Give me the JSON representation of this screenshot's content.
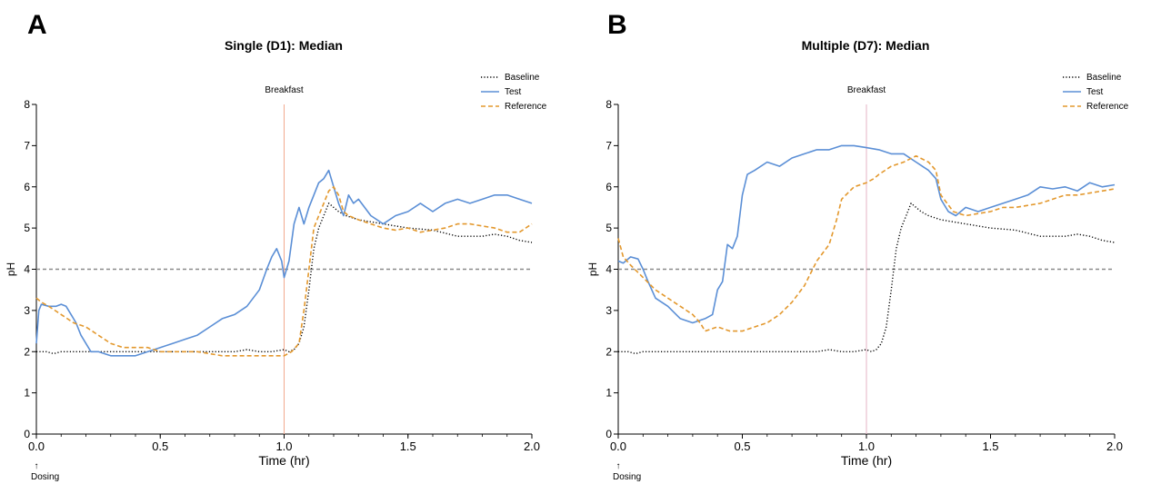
{
  "chart_data": [
    {
      "panel_label": "A",
      "type": "line",
      "title": "Single (D1): Median",
      "xlabel": "Time (hr)",
      "ylabel": "pH",
      "xlim": [
        0,
        2
      ],
      "ylim": [
        0,
        8
      ],
      "x_ticks": [
        "0.0",
        "0.5",
        "1.0",
        "1.5",
        "2.0"
      ],
      "y_ticks": [
        "0",
        "1",
        "2",
        "3",
        "4",
        "5",
        "6",
        "7",
        "8"
      ],
      "reference_line": {
        "y": 4
      },
      "event": {
        "x": 1.0,
        "label": "Breakfast"
      },
      "dosing_label": "Dosing",
      "dosing_arrow": "↑",
      "legend_position": "top-right",
      "series": [
        {
          "name": "Baseline",
          "color": "#000000",
          "style": "dotted",
          "x": [
            0,
            0.04,
            0.07,
            0.1,
            0.15,
            0.2,
            0.3,
            0.4,
            0.5,
            0.6,
            0.7,
            0.8,
            0.85,
            0.9,
            0.95,
            1.0,
            1.02,
            1.04,
            1.06,
            1.08,
            1.1,
            1.12,
            1.14,
            1.16,
            1.18,
            1.2,
            1.22,
            1.25,
            1.3,
            1.35,
            1.4,
            1.5,
            1.6,
            1.7,
            1.8,
            1.85,
            1.9,
            1.95,
            2.0
          ],
          "y": [
            2.0,
            2.0,
            1.95,
            2.0,
            2.0,
            2.0,
            2.0,
            2.0,
            2.0,
            2.0,
            2.0,
            2.0,
            2.05,
            2.0,
            2.0,
            2.05,
            2.0,
            2.05,
            2.2,
            2.6,
            3.5,
            4.5,
            5.0,
            5.3,
            5.6,
            5.5,
            5.4,
            5.3,
            5.2,
            5.15,
            5.1,
            5.0,
            4.95,
            4.8,
            4.8,
            4.85,
            4.8,
            4.7,
            4.65
          ]
        },
        {
          "name": "Test",
          "color": "#5b8fd6",
          "style": "solid",
          "x": [
            0,
            0.01,
            0.02,
            0.05,
            0.08,
            0.1,
            0.12,
            0.14,
            0.16,
            0.18,
            0.2,
            0.22,
            0.25,
            0.3,
            0.35,
            0.4,
            0.45,
            0.5,
            0.55,
            0.6,
            0.65,
            0.7,
            0.75,
            0.8,
            0.85,
            0.9,
            0.93,
            0.95,
            0.97,
            0.99,
            1.0,
            1.02,
            1.04,
            1.06,
            1.08,
            1.1,
            1.12,
            1.14,
            1.16,
            1.18,
            1.2,
            1.22,
            1.24,
            1.26,
            1.28,
            1.3,
            1.35,
            1.4,
            1.45,
            1.5,
            1.55,
            1.6,
            1.65,
            1.7,
            1.75,
            1.8,
            1.85,
            1.9,
            1.95,
            2.0
          ],
          "y": [
            2.2,
            3.0,
            3.15,
            3.1,
            3.1,
            3.15,
            3.1,
            2.9,
            2.7,
            2.4,
            2.2,
            2.0,
            2.0,
            1.9,
            1.9,
            1.9,
            2.0,
            2.1,
            2.2,
            2.3,
            2.4,
            2.6,
            2.8,
            2.9,
            3.1,
            3.5,
            4.0,
            4.3,
            4.5,
            4.2,
            3.8,
            4.2,
            5.1,
            5.5,
            5.1,
            5.5,
            5.8,
            6.1,
            6.2,
            6.4,
            6.0,
            5.6,
            5.3,
            5.8,
            5.6,
            5.7,
            5.3,
            5.1,
            5.3,
            5.4,
            5.6,
            5.4,
            5.6,
            5.7,
            5.6,
            5.7,
            5.8,
            5.8,
            5.7,
            5.6
          ]
        },
        {
          "name": "Reference",
          "color": "#e3982d",
          "style": "dashed",
          "x": [
            0,
            0.02,
            0.05,
            0.1,
            0.15,
            0.2,
            0.25,
            0.3,
            0.35,
            0.4,
            0.45,
            0.5,
            0.55,
            0.6,
            0.65,
            0.7,
            0.75,
            0.8,
            0.85,
            0.9,
            0.95,
            1.0,
            1.03,
            1.06,
            1.08,
            1.1,
            1.12,
            1.14,
            1.16,
            1.18,
            1.2,
            1.22,
            1.24,
            1.26,
            1.3,
            1.35,
            1.4,
            1.45,
            1.5,
            1.55,
            1.6,
            1.65,
            1.7,
            1.75,
            1.8,
            1.85,
            1.9,
            1.95,
            2.0
          ],
          "y": [
            3.3,
            3.2,
            3.1,
            2.9,
            2.7,
            2.6,
            2.4,
            2.2,
            2.1,
            2.1,
            2.1,
            2.0,
            2.0,
            2.0,
            2.0,
            1.95,
            1.9,
            1.9,
            1.9,
            1.9,
            1.9,
            1.9,
            2.0,
            2.2,
            3.0,
            4.0,
            5.0,
            5.3,
            5.6,
            5.9,
            6.0,
            5.8,
            5.4,
            5.3,
            5.2,
            5.1,
            5.0,
            4.95,
            5.0,
            4.9,
            4.95,
            5.0,
            5.1,
            5.1,
            5.05,
            5.0,
            4.9,
            4.9,
            5.1
          ]
        }
      ]
    },
    {
      "panel_label": "B",
      "type": "line",
      "title": "Multiple (D7): Median",
      "xlabel": "Time (hr)",
      "ylabel": "pH",
      "xlim": [
        0,
        2
      ],
      "ylim": [
        0,
        8
      ],
      "x_ticks": [
        "0.0",
        "0.5",
        "1.0",
        "1.5",
        "2.0"
      ],
      "y_ticks": [
        "0",
        "1",
        "2",
        "3",
        "4",
        "5",
        "6",
        "7",
        "8"
      ],
      "reference_line": {
        "y": 4
      },
      "event": {
        "x": 1.0,
        "label": "Breakfast"
      },
      "dosing_label": "Dosing",
      "dosing_arrow": "↑",
      "legend_position": "top-right",
      "series": [
        {
          "name": "Baseline",
          "color": "#000000",
          "style": "dotted",
          "x": [
            0,
            0.04,
            0.07,
            0.1,
            0.15,
            0.2,
            0.3,
            0.4,
            0.5,
            0.6,
            0.7,
            0.8,
            0.85,
            0.9,
            0.95,
            1.0,
            1.02,
            1.04,
            1.06,
            1.08,
            1.1,
            1.12,
            1.14,
            1.16,
            1.18,
            1.2,
            1.22,
            1.25,
            1.3,
            1.35,
            1.4,
            1.5,
            1.6,
            1.7,
            1.8,
            1.85,
            1.9,
            1.95,
            2.0
          ],
          "y": [
            2.0,
            2.0,
            1.95,
            2.0,
            2.0,
            2.0,
            2.0,
            2.0,
            2.0,
            2.0,
            2.0,
            2.0,
            2.05,
            2.0,
            2.0,
            2.05,
            2.0,
            2.05,
            2.2,
            2.6,
            3.5,
            4.5,
            5.0,
            5.3,
            5.6,
            5.5,
            5.4,
            5.3,
            5.2,
            5.15,
            5.1,
            5.0,
            4.95,
            4.8,
            4.8,
            4.85,
            4.8,
            4.7,
            4.65
          ]
        },
        {
          "name": "Test",
          "color": "#5b8fd6",
          "style": "solid",
          "x": [
            0,
            0.02,
            0.05,
            0.08,
            0.1,
            0.12,
            0.15,
            0.2,
            0.25,
            0.3,
            0.35,
            0.38,
            0.4,
            0.42,
            0.44,
            0.46,
            0.48,
            0.5,
            0.52,
            0.55,
            0.6,
            0.65,
            0.7,
            0.75,
            0.8,
            0.85,
            0.9,
            0.95,
            1.0,
            1.05,
            1.1,
            1.15,
            1.2,
            1.25,
            1.28,
            1.3,
            1.33,
            1.36,
            1.4,
            1.45,
            1.5,
            1.55,
            1.6,
            1.65,
            1.7,
            1.75,
            1.8,
            1.85,
            1.9,
            1.95,
            2.0
          ],
          "y": [
            4.2,
            4.15,
            4.3,
            4.25,
            4.0,
            3.7,
            3.3,
            3.1,
            2.8,
            2.7,
            2.8,
            2.9,
            3.5,
            3.7,
            4.6,
            4.5,
            4.8,
            5.8,
            6.3,
            6.4,
            6.6,
            6.5,
            6.7,
            6.8,
            6.9,
            6.9,
            7.0,
            7.0,
            6.95,
            6.9,
            6.8,
            6.8,
            6.6,
            6.4,
            6.2,
            5.7,
            5.4,
            5.3,
            5.5,
            5.4,
            5.5,
            5.6,
            5.7,
            5.8,
            6.0,
            5.95,
            6.0,
            5.9,
            6.1,
            6.0,
            6.05
          ]
        },
        {
          "name": "Reference",
          "color": "#e3982d",
          "style": "dashed",
          "x": [
            0,
            0.02,
            0.05,
            0.1,
            0.15,
            0.2,
            0.25,
            0.3,
            0.33,
            0.35,
            0.4,
            0.45,
            0.5,
            0.55,
            0.6,
            0.65,
            0.7,
            0.75,
            0.8,
            0.85,
            0.88,
            0.9,
            0.95,
            1.0,
            1.03,
            1.05,
            1.1,
            1.15,
            1.2,
            1.25,
            1.28,
            1.3,
            1.35,
            1.4,
            1.45,
            1.5,
            1.55,
            1.6,
            1.65,
            1.7,
            1.75,
            1.8,
            1.85,
            1.9,
            1.95,
            2.0
          ],
          "y": [
            4.75,
            4.3,
            4.1,
            3.8,
            3.5,
            3.3,
            3.1,
            2.9,
            2.7,
            2.5,
            2.6,
            2.5,
            2.5,
            2.6,
            2.7,
            2.9,
            3.2,
            3.6,
            4.2,
            4.6,
            5.2,
            5.7,
            6.0,
            6.1,
            6.2,
            6.3,
            6.5,
            6.6,
            6.75,
            6.6,
            6.4,
            5.8,
            5.4,
            5.3,
            5.35,
            5.4,
            5.5,
            5.5,
            5.55,
            5.6,
            5.7,
            5.8,
            5.8,
            5.85,
            5.9,
            5.95
          ]
        }
      ]
    }
  ]
}
